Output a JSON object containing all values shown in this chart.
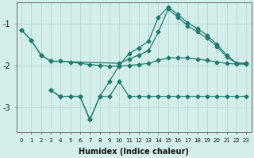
{
  "xlabel": "Humidex (Indice chaleur)",
  "ylabel": "",
  "bg_color": "#d4eeec",
  "grid_color": "#b8dbd8",
  "line_color": "#1e7b6e",
  "xlim": [
    -0.5,
    23.5
  ],
  "ylim": [
    -3.6,
    -0.5
  ],
  "yticks": [
    -3,
    -2,
    -1
  ],
  "xticks": [
    0,
    1,
    2,
    3,
    4,
    5,
    6,
    7,
    8,
    9,
    10,
    11,
    12,
    13,
    14,
    15,
    16,
    17,
    18,
    19,
    20,
    21,
    22,
    23
  ],
  "line1_x": [
    0,
    1,
    2,
    3,
    10,
    11,
    12,
    13,
    14,
    15,
    16,
    17,
    18,
    19,
    20,
    21,
    22,
    23
  ],
  "line1_y": [
    -1.15,
    -1.4,
    -1.75,
    -1.9,
    -1.95,
    -1.85,
    -1.75,
    -1.65,
    -1.2,
    -0.65,
    -0.85,
    -1.05,
    -1.2,
    -1.35,
    -1.55,
    -1.8,
    -1.95,
    -1.95
  ],
  "line2_x": [
    0,
    1,
    2,
    3,
    4,
    5,
    6,
    7,
    8,
    9,
    10,
    11,
    12,
    13,
    14,
    15,
    16,
    17,
    18,
    19,
    20,
    21,
    22,
    23
  ],
  "line2_y": [
    -1.15,
    -1.4,
    -1.75,
    -1.9,
    -1.9,
    -1.92,
    -1.95,
    -1.98,
    -2.0,
    -2.02,
    -2.02,
    -2.0,
    -1.98,
    -1.95,
    -1.88,
    -1.82,
    -1.82,
    -1.82,
    -1.85,
    -1.88,
    -1.92,
    -1.95,
    -1.97,
    -1.97
  ],
  "line3_x": [
    3,
    4,
    5,
    6,
    7,
    8,
    9,
    10,
    11,
    12,
    13,
    14,
    15,
    16,
    17,
    18,
    19,
    20,
    21,
    22,
    23
  ],
  "line3_y": [
    -2.6,
    -2.75,
    -2.75,
    -2.75,
    -3.3,
    -2.75,
    -2.75,
    -2.38,
    -2.75,
    -2.75,
    -2.75,
    -2.75,
    -2.75,
    -2.75,
    -2.75,
    -2.75,
    -2.75,
    -2.75,
    -2.75,
    -2.75,
    -2.75
  ],
  "line4_x": [
    3,
    4,
    5,
    6,
    7,
    8,
    9,
    10,
    11,
    12,
    13,
    14,
    15,
    16,
    17,
    18,
    19,
    20,
    21,
    22,
    23
  ],
  "line4_y": [
    -2.6,
    -2.75,
    -2.75,
    -2.75,
    -3.3,
    -2.75,
    -2.38,
    -2.0,
    -1.72,
    -1.58,
    -1.42,
    -0.85,
    -0.6,
    -0.78,
    -0.98,
    -1.12,
    -1.28,
    -1.5,
    -1.75,
    -1.95,
    -1.95
  ]
}
